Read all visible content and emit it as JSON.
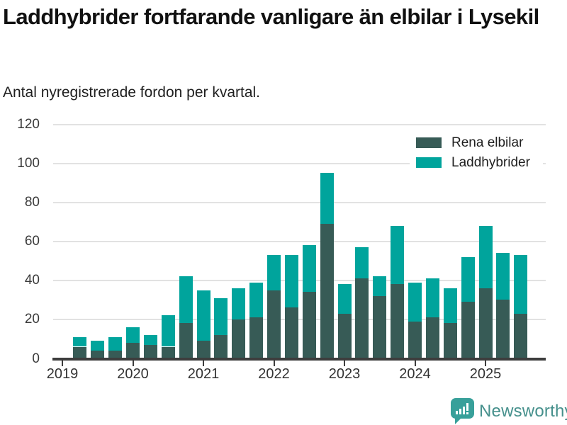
{
  "header": {
    "title": "Laddhybrider fortfarande vanligare än elbilar i Lysekil",
    "subtitle": "Antal nyregistrerade fordon per kvartal."
  },
  "chart_data": {
    "type": "bar",
    "stacked": true,
    "title": "Laddhybrider fortfarande vanligare än elbilar i Lysekil",
    "subtitle": "Antal nyregistrerade fordon per kvartal.",
    "x": [
      "2019 K2",
      "2019 K3",
      "2019 K4",
      "2020 K1",
      "2020 K2",
      "2020 K3",
      "2020 K4",
      "2021 K1",
      "2021 K2",
      "2021 K3",
      "2021 K4",
      "2022 K1",
      "2022 K2",
      "2022 K3",
      "2022 K4",
      "2023 K1",
      "2023 K2",
      "2023 K3",
      "2023 K4",
      "2024 K1",
      "2024 K2",
      "2024 K3",
      "2024 K4",
      "2025 K1",
      "2025 K2",
      "2025 K3"
    ],
    "series": [
      {
        "name": "Rena elbilar",
        "color": "#375b56",
        "values": [
          6,
          4,
          4,
          8,
          7,
          6,
          18,
          9,
          12,
          20,
          21,
          35,
          26,
          34,
          69,
          23,
          41,
          32,
          38,
          19,
          21,
          18,
          29,
          36,
          30,
          23
        ]
      },
      {
        "name": "Laddhybrider",
        "color": "#00a49c",
        "values": [
          5,
          5,
          7,
          8,
          5,
          16,
          24,
          26,
          19,
          16,
          18,
          18,
          27,
          24,
          26,
          15,
          16,
          10,
          30,
          20,
          20,
          18,
          23,
          32,
          24,
          30
        ]
      }
    ],
    "x_tick_labels": [
      "2019",
      "2020",
      "2021",
      "2022",
      "2023",
      "2024",
      "2025"
    ],
    "xlabel": "",
    "ylabel": "",
    "ylim": [
      0,
      120
    ],
    "yticks": [
      0,
      20,
      40,
      60,
      80,
      100,
      120
    ],
    "grid": true,
    "legend_position": "top-right"
  },
  "footer": {
    "brand": "Newsworthy",
    "brand_color": "#46908c",
    "icon": "bar-chart-speech-bubble-icon",
    "icon_color": "#38a09a"
  }
}
